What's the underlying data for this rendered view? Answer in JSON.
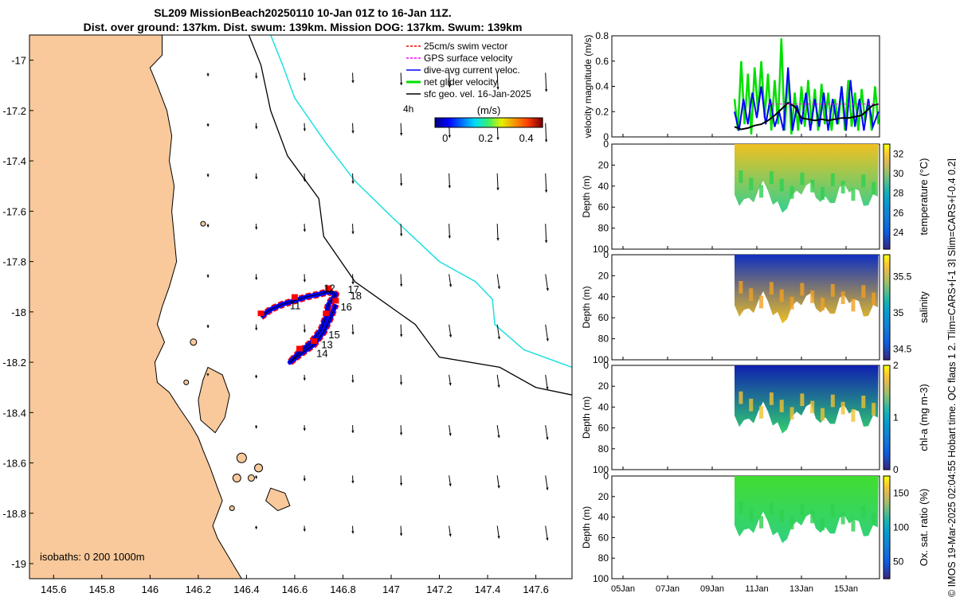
{
  "header": {
    "title_line1": "SL209 MissionBeach20250110 10-Jan 01Z to 16-Jan 11Z.",
    "title_line2": "Dist. over ground: 137km. Dist. swum: 139km. Mission DOG: 137km. Swum: 139km"
  },
  "credit": "© IMOS 19-Mar-2025 02:04:55 Hobart time. QC flags 1  2. Tlim=CARS+[-1 3] Slim=CARS+[-0.4 0.2]",
  "colors": {
    "land": "#f9c99b",
    "swim": "#ff0000",
    "gps": "#ff00ff",
    "dac": "#0000ff",
    "net": "#00e000",
    "isobath200": "#000000",
    "isobath1000": "#20e0e0"
  },
  "chart_data": [
    {
      "type": "map",
      "xlim": [
        145.5,
        147.75
      ],
      "ylim": [
        -19.06,
        -16.9
      ],
      "xticks": [
        "145.6",
        "145.8",
        "146",
        "146.2",
        "146.4",
        "146.6",
        "146.8",
        "147",
        "147.2",
        "147.4",
        "147.6"
      ],
      "xtick_values": [
        145.6,
        145.8,
        146.0,
        146.2,
        146.4,
        146.6,
        146.8,
        147.0,
        147.2,
        147.4,
        147.6
      ],
      "yticks": [
        "-17",
        "-17.2",
        "-17.4",
        "-17.6",
        "-17.8",
        "-18",
        "-18.2",
        "-18.4",
        "-18.6",
        "-18.8",
        "-19"
      ],
      "ytick_values": [
        -17,
        -17.2,
        -17.4,
        -17.6,
        -17.8,
        -18,
        -18.2,
        -18.4,
        -18.6,
        -18.8,
        -19
      ],
      "legend": [
        {
          "label": "25cm/s swim vector",
          "color": "#ff0000"
        },
        {
          "label": "GPS surface velocity",
          "color": "#ff00ff"
        },
        {
          "label": "dive-avg current veloc.",
          "color": "#0000ff"
        },
        {
          "label": "net glider velocity",
          "color": "#00e000"
        },
        {
          "label": "sfc geo. vel. 16-Jan-2025",
          "color": "#000000"
        }
      ],
      "legend_note": "4h",
      "colorbar": {
        "title": "(m/s)",
        "ticks": [
          "0",
          "0.2",
          "0.4"
        ],
        "tick_values": [
          0,
          0.2,
          0.4
        ],
        "range": [
          -0.05,
          0.48
        ]
      },
      "isobaths_label": "isobaths: 0   200  1000m",
      "track_day_labels": [
        {
          "text": "11",
          "lon": 146.58,
          "lat": -17.99
        },
        {
          "text": "12",
          "lon": 146.72,
          "lat": -17.92
        },
        {
          "text": "13",
          "lon": 146.71,
          "lat": -18.145
        },
        {
          "text": "14",
          "lon": 146.69,
          "lat": -18.18
        },
        {
          "text": "15",
          "lon": 146.74,
          "lat": -18.105
        },
        {
          "text": "16",
          "lon": 146.79,
          "lat": -17.995
        },
        {
          "text": "17",
          "lon": 146.82,
          "lat": -17.925
        },
        {
          "text": "18",
          "lon": 146.83,
          "lat": -17.95
        }
      ],
      "track": [
        [
          146.46,
          -18.02
        ],
        [
          146.5,
          -17.99
        ],
        [
          146.55,
          -17.97
        ],
        [
          146.6,
          -17.955
        ],
        [
          146.65,
          -17.94
        ],
        [
          146.7,
          -17.93
        ],
        [
          146.74,
          -17.92
        ],
        [
          146.77,
          -17.93
        ],
        [
          146.74,
          -17.97
        ],
        [
          146.73,
          -18.02
        ],
        [
          146.71,
          -18.07
        ],
        [
          146.67,
          -18.12
        ],
        [
          146.62,
          -18.16
        ],
        [
          146.58,
          -18.2
        ],
        [
          146.62,
          -18.17
        ],
        [
          146.68,
          -18.13
        ],
        [
          146.72,
          -18.08
        ],
        [
          146.75,
          -18.02
        ],
        [
          146.77,
          -17.97
        ]
      ],
      "isobath_200": [
        [
          146.41,
          -16.9
        ],
        [
          146.46,
          -17.02
        ],
        [
          146.5,
          -17.2
        ],
        [
          146.57,
          -17.38
        ],
        [
          146.7,
          -17.55
        ],
        [
          146.72,
          -17.7
        ],
        [
          146.85,
          -17.88
        ],
        [
          147.1,
          -18.05
        ],
        [
          147.2,
          -18.18
        ],
        [
          147.45,
          -18.22
        ],
        [
          147.6,
          -18.3
        ],
        [
          147.75,
          -18.33
        ]
      ],
      "isobath_1000": [
        [
          146.5,
          -16.9
        ],
        [
          146.55,
          -17.02
        ],
        [
          146.6,
          -17.15
        ],
        [
          146.73,
          -17.33
        ],
        [
          146.85,
          -17.48
        ],
        [
          147.0,
          -17.62
        ],
        [
          147.2,
          -17.8
        ],
        [
          147.35,
          -17.88
        ],
        [
          147.42,
          -17.95
        ],
        [
          147.43,
          -18.05
        ],
        [
          147.55,
          -18.15
        ],
        [
          147.75,
          -18.22
        ]
      ]
    },
    {
      "type": "line",
      "ylabel": "velocity magnitude (m/s)",
      "ylim": [
        0,
        0.8
      ],
      "yticks": [
        "0",
        "0.2",
        "0.4",
        "0.6",
        "0.8"
      ],
      "xlim_days": [
        4.5,
        16.5
      ],
      "series": [
        {
          "name": "net glider velocity",
          "color": "#00e000",
          "x": [
            10,
            10.15,
            10.3,
            10.45,
            10.6,
            10.75,
            10.9,
            11.05,
            11.2,
            11.35,
            11.5,
            11.65,
            11.8,
            11.95,
            12.1,
            12.25,
            12.4,
            12.55,
            12.7,
            12.85,
            13,
            13.15,
            13.3,
            13.45,
            13.6,
            13.75,
            13.9,
            14.05,
            14.2,
            14.35,
            14.5,
            14.65,
            14.8,
            14.95,
            15.1,
            15.25,
            15.4,
            15.55,
            15.7,
            15.85,
            16,
            16.15,
            16.3,
            16.45
          ],
          "y": [
            0.3,
            0.05,
            0.6,
            0.1,
            0.5,
            0.02,
            0.55,
            0.2,
            0.6,
            0.15,
            0.5,
            0.05,
            0.45,
            0.1,
            0.78,
            0.05,
            0.5,
            0.02,
            0.35,
            0.05,
            0.4,
            0.08,
            0.45,
            0.1,
            0.38,
            0.05,
            0.42,
            0.1,
            0.35,
            0.05,
            0.3,
            0.1,
            0.4,
            0.05,
            0.45,
            0.08,
            0.35,
            0.05,
            0.38,
            0.12,
            0.3,
            0.05,
            0.4,
            0.1
          ]
        },
        {
          "name": "dive-avg current veloc.",
          "color": "#0000ff",
          "x": [
            10,
            10.2,
            10.4,
            10.6,
            10.8,
            11,
            11.2,
            11.4,
            11.6,
            11.8,
            12,
            12.2,
            12.4,
            12.6,
            12.8,
            13,
            13.2,
            13.4,
            13.6,
            13.8,
            14,
            14.2,
            14.4,
            14.6,
            14.8,
            15,
            15.2,
            15.4,
            15.6,
            15.8,
            16,
            16.2,
            16.45
          ],
          "y": [
            0.2,
            0.05,
            0.3,
            0.1,
            0.35,
            0.15,
            0.4,
            0.1,
            0.3,
            0.08,
            0.2,
            0.05,
            0.55,
            0.05,
            0.25,
            0.1,
            0.35,
            0.05,
            0.3,
            0.08,
            0.35,
            0.05,
            0.3,
            0.1,
            0.4,
            0.05,
            0.45,
            0.08,
            0.3,
            0.05,
            0.3,
            0.08,
            0.2
          ]
        },
        {
          "name": "mean",
          "color": "#000000",
          "x": [
            10,
            10.3,
            10.6,
            10.9,
            11.2,
            11.5,
            11.8,
            12.1,
            12.4,
            12.7,
            13,
            13.3,
            13.6,
            13.9,
            14.2,
            14.5,
            14.8,
            15.1,
            15.4,
            15.7,
            16,
            16.2,
            16.45
          ],
          "y": [
            0.08,
            0.06,
            0.07,
            0.09,
            0.1,
            0.13,
            0.17,
            0.22,
            0.27,
            0.24,
            0.15,
            0.14,
            0.13,
            0.14,
            0.13,
            0.14,
            0.15,
            0.15,
            0.16,
            0.17,
            0.22,
            0.25,
            0.26
          ]
        }
      ]
    },
    {
      "type": "section",
      "panels": [
        {
          "name": "temperature",
          "ylabel": "Depth (m)",
          "cbar_label": "temperature (°C)",
          "cbar_ticks": [
            "24",
            "26",
            "28",
            "30",
            "32"
          ],
          "cbar_range": [
            22.3,
            33
          ],
          "yticks": [
            "0",
            "20",
            "40",
            "60",
            "80",
            "100"
          ],
          "top_color": "#f0c020",
          "bottom_color": "#30d090",
          "cmap": "parula"
        },
        {
          "name": "salinity",
          "ylabel": "Depth (m)",
          "cbar_label": "salinity",
          "cbar_ticks": [
            "34.5",
            "35",
            "35.5"
          ],
          "cbar_range": [
            34.35,
            35.8
          ],
          "yticks": [
            "0",
            "20",
            "40",
            "60",
            "80",
            "100"
          ],
          "top_color": "#1030c0",
          "bottom_color": "#f0c020",
          "cmap": "parula"
        },
        {
          "name": "chl-a",
          "ylabel": "Depth (m)",
          "cbar_label": "chl-a (mg m-3)",
          "cbar_ticks": [
            "0",
            "1",
            "2"
          ],
          "cbar_range": [
            0,
            2
          ],
          "yticks": [
            "0",
            "20",
            "40",
            "60",
            "80",
            "100"
          ],
          "top_color": "#1020b0",
          "bottom_color": "#30d070",
          "cmap": "parula"
        },
        {
          "name": "oxygen",
          "ylabel": "Depth (m)",
          "cbar_label": "Ox. sat. ratio (%)",
          "cbar_ticks": [
            "50",
            "100",
            "150"
          ],
          "cbar_range": [
            25,
            175
          ],
          "yticks": [
            "0",
            "20",
            "40",
            "60",
            "80",
            "100"
          ],
          "top_color": "#40dd30",
          "bottom_color": "#30d080",
          "cmap": "parula"
        }
      ],
      "xticks": [
        "05Jan",
        "07Jan",
        "09Jan",
        "11Jan",
        "13Jan",
        "15Jan"
      ],
      "xtick_days": [
        5,
        7,
        9,
        11,
        13,
        15
      ],
      "data_start_day": 10.0,
      "data_end_day": 16.45
    }
  ]
}
